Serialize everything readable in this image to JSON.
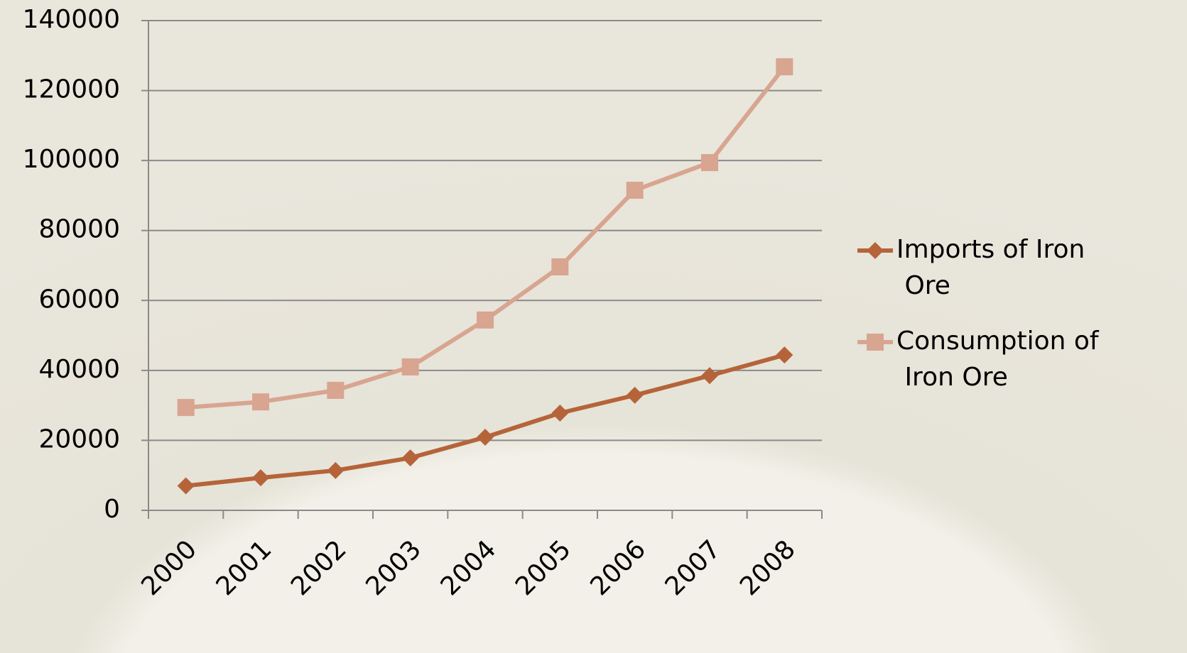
{
  "chart_data": {
    "type": "line",
    "categories": [
      "2000",
      "2001",
      "2002",
      "2003",
      "2004",
      "2005",
      "2006",
      "2007",
      "2008"
    ],
    "series": [
      {
        "name": "Imports of Iron Ore",
        "color": "#b5643a",
        "marker": "diamond",
        "values": [
          7000,
          9300,
          11400,
          15000,
          20900,
          27800,
          32900,
          38500,
          44400
        ]
      },
      {
        "name": "Consumption of Iron Ore",
        "color": "#d8a590",
        "marker": "square",
        "values": [
          29400,
          31000,
          34300,
          41000,
          54400,
          69600,
          91500,
          99400,
          126800
        ]
      }
    ],
    "ylim": [
      0,
      140000
    ],
    "yticks": [
      0,
      20000,
      40000,
      60000,
      80000,
      100000,
      120000,
      140000
    ],
    "grid": true,
    "legend": "right"
  }
}
